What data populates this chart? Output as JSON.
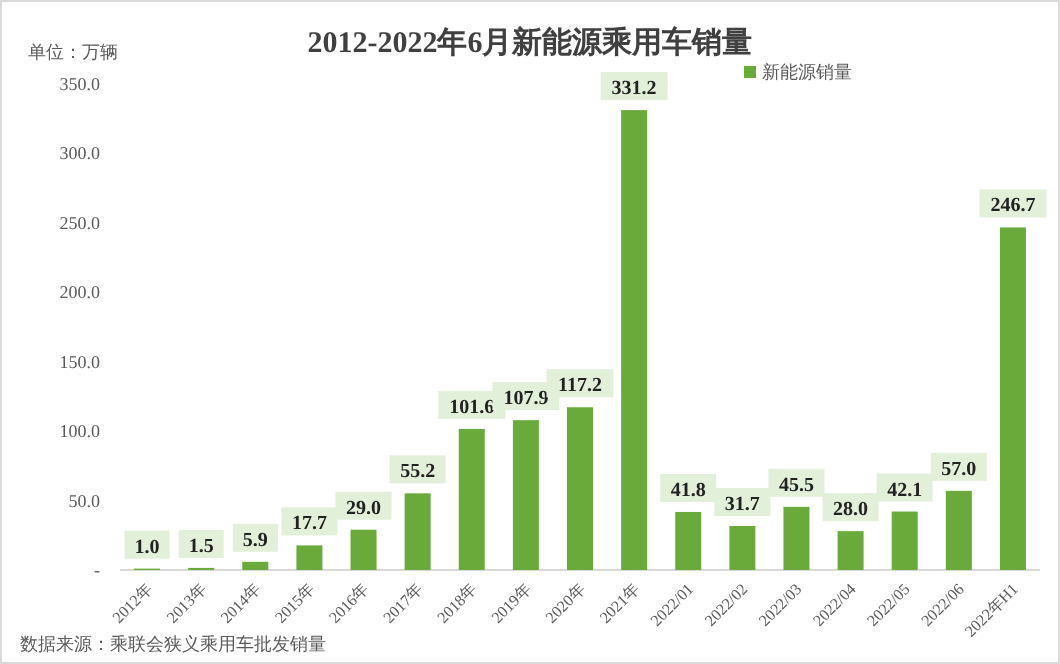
{
  "chart_data": {
    "type": "bar",
    "title": "2012-2022年6月新能源乘用车销量",
    "ylabel": "单位：万辆",
    "categories": [
      "2012年",
      "2013年",
      "2014年",
      "2015年",
      "2016年",
      "2017年",
      "2018年",
      "2019年",
      "2020年",
      "2021年",
      "2022/01",
      "2022/02",
      "2022/03",
      "2022/04",
      "2022/05",
      "2022/06",
      "2022年H1"
    ],
    "series": [
      {
        "name": "新能源销量",
        "color": "#6aaa3a",
        "values": [
          1.0,
          1.5,
          5.9,
          17.7,
          29.0,
          55.2,
          101.6,
          107.9,
          117.2,
          331.2,
          41.8,
          31.7,
          45.5,
          28.0,
          42.1,
          57.0,
          246.7
        ]
      }
    ],
    "value_labels": [
      "1.0",
      "1.5",
      "5.9",
      "17.7",
      "29.0",
      "55.2",
      "101.6",
      "107.9",
      "117.2",
      "331.2",
      "41.8",
      "31.7",
      "45.5",
      "28.0",
      "42.1",
      "57.0",
      "246.7"
    ],
    "ylim": [
      0,
      350
    ],
    "yticks": [
      {
        "value": 0,
        "label": "-"
      },
      {
        "value": 50,
        "label": "50.0"
      },
      {
        "value": 100,
        "label": "100.0"
      },
      {
        "value": 150,
        "label": "150.0"
      },
      {
        "value": 200,
        "label": "200.0"
      },
      {
        "value": 250,
        "label": "250.0"
      },
      {
        "value": 300,
        "label": "300.0"
      },
      {
        "value": 350,
        "label": "350.0"
      }
    ],
    "grid": false,
    "legend": "top right",
    "annotations": [
      "数据来源：乘联会狭义乘用车批发销量"
    ]
  }
}
